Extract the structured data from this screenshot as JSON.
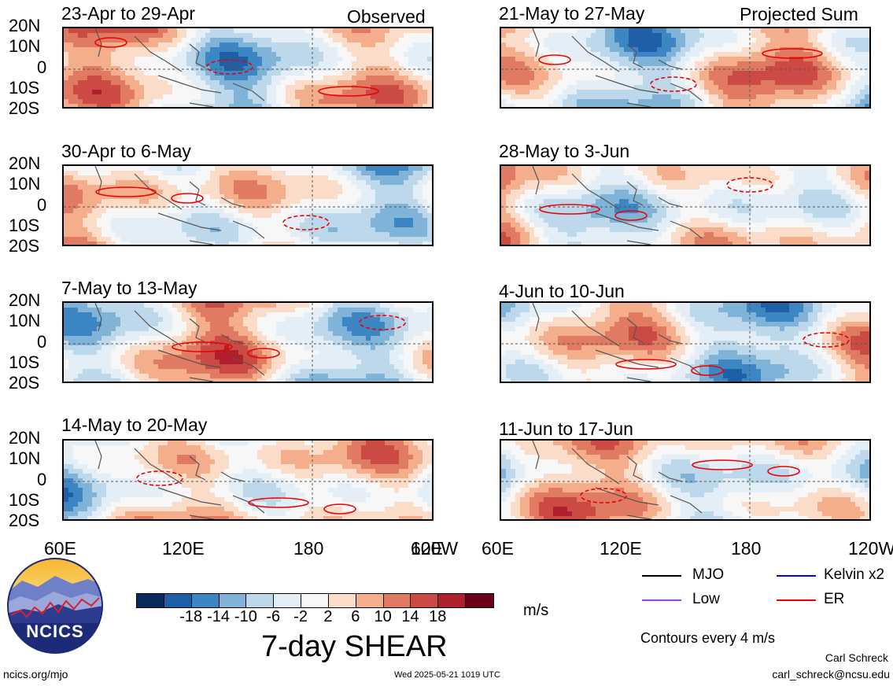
{
  "header": {
    "left_label": "Observed",
    "right_label": "Projected Sum"
  },
  "panels": [
    {
      "title": "23-Apr to 29-Apr"
    },
    {
      "title": "30-Apr to 6-May"
    },
    {
      "title": "7-May to 13-May"
    },
    {
      "title": "14-May to 20-May"
    },
    {
      "title": "21-May to 27-May"
    },
    {
      "title": "28-May to 3-Jun"
    },
    {
      "title": "4-Jun to 10-Jun"
    },
    {
      "title": "11-Jun to 17-Jun"
    }
  ],
  "lat_labels": [
    "20N",
    "10N",
    "0",
    "10S",
    "20S"
  ],
  "lon_labels": [
    "60E",
    "120E",
    "180",
    "120W"
  ],
  "colorbar": {
    "ticks": [
      "-18",
      "-14",
      "-10",
      "-6",
      "-2",
      "2",
      "6",
      "10",
      "14",
      "18"
    ],
    "unit": "m/s",
    "colors": [
      "#0a2a5e",
      "#1f5fa8",
      "#3c86c4",
      "#7fb3d8",
      "#bcd8ea",
      "#e3eef6",
      "#f7f7f7",
      "#fbdcc8",
      "#f4ae8c",
      "#e07a62",
      "#cc4a44",
      "#b01f2e",
      "#6c0019"
    ]
  },
  "title": "7-day SHEAR",
  "legend": {
    "items": [
      {
        "label": "MJO",
        "color": "#000000"
      },
      {
        "label": "Kelvin x2",
        "color": "#0000ff"
      },
      {
        "label": "Low",
        "color": "#a040e0"
      },
      {
        "label": "ER",
        "color": "#ee0000"
      }
    ],
    "contours_note": "Contours every 4 m/s"
  },
  "logo_text": "NCICS",
  "footer": {
    "left": "ncics.org/mjo",
    "center": "Wed 2025-05-21 1019 UTC",
    "author": "Carl Schreck",
    "email": "carl_schreck@ncsu.edu"
  }
}
